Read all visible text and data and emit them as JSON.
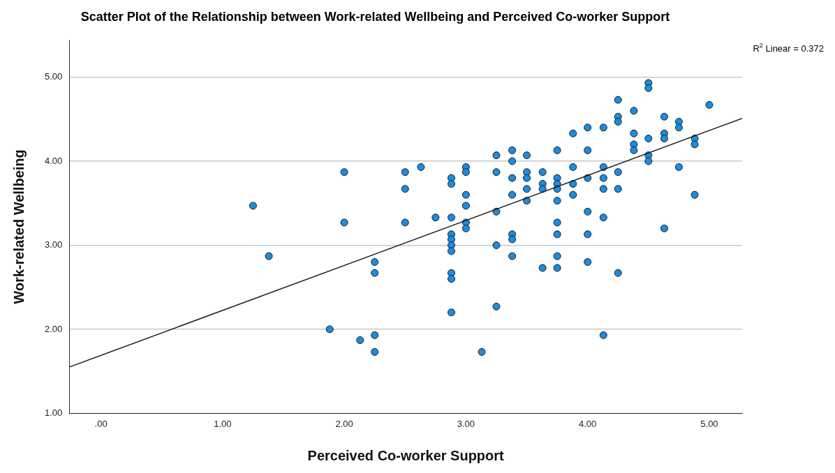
{
  "chart_data": {
    "type": "scatter",
    "title": "Scatter Plot of the Relationship between Work-related Wellbeing and Perceived Co-worker Support",
    "xlabel": "Perceived Co-worker Support",
    "ylabel": "Work-related Wellbeing",
    "annotations": [
      "R$^{2}$ Linear = 0.372"
    ],
    "xlim": [
      -0.26,
      5.27
    ],
    "ylim": [
      1,
      5.44
    ],
    "xticks": [
      {
        "value": 0,
        "label": ".00"
      },
      {
        "value": 1,
        "label": "1.00"
      },
      {
        "value": 2,
        "label": "2.00"
      },
      {
        "value": 3,
        "label": "3.00"
      },
      {
        "value": 4,
        "label": "4.00"
      },
      {
        "value": 5,
        "label": "5.00"
      }
    ],
    "yticks": [
      {
        "value": 1,
        "label": "1.00"
      },
      {
        "value": 2,
        "label": "2.00"
      },
      {
        "value": 3,
        "label": "3.00"
      },
      {
        "value": 4,
        "label": "4.00"
      },
      {
        "value": 5,
        "label": "5.00"
      }
    ],
    "grid": "y",
    "legend": false,
    "marker": "circle",
    "series": [
      {
        "type": "scatter",
        "color": "#1c8ce0",
        "x": [
          1.25,
          1.38,
          1.88,
          2,
          2,
          2.13,
          2.25,
          2.25,
          2.25,
          2.25,
          2.5,
          2.5,
          2.5,
          2.63,
          2.75,
          2.88,
          2.88,
          2.88,
          2.88,
          2.88,
          2.88,
          2.88,
          2.88,
          2.88,
          2.88,
          3,
          3,
          3,
          3,
          3,
          3,
          3.13,
          3.25,
          3.25,
          3.25,
          3.25,
          3.25,
          3.38,
          3.38,
          3.38,
          3.38,
          3.38,
          3.38,
          3.38,
          3.5,
          3.5,
          3.5,
          3.5,
          3.5,
          3.63,
          3.63,
          3.63,
          3.63,
          3.75,
          3.75,
          3.75,
          3.75,
          3.75,
          3.75,
          3.75,
          3.75,
          3.75,
          3.88,
          3.88,
          3.88,
          3.88,
          4,
          4,
          4,
          4,
          4,
          4,
          4.13,
          4.13,
          4.13,
          4.13,
          4.13,
          4.13,
          4.25,
          4.25,
          4.25,
          4.25,
          4.25,
          4.25,
          4.38,
          4.38,
          4.38,
          4.38,
          4.5,
          4.5,
          4.5,
          4.5,
          4.5,
          4.63,
          4.63,
          4.63,
          4.63,
          4.75,
          4.75,
          4.75,
          4.88,
          4.88,
          4.88,
          5
        ],
        "values": [
          3.47,
          2.87,
          2.0,
          3.87,
          3.27,
          1.87,
          2.8,
          2.67,
          1.93,
          1.73,
          3.87,
          3.67,
          3.27,
          3.93,
          3.33,
          3.8,
          3.73,
          3.33,
          3.13,
          3.07,
          3.0,
          2.93,
          2.67,
          2.6,
          2.2,
          3.93,
          3.87,
          3.6,
          3.47,
          3.27,
          3.2,
          1.73,
          4.07,
          3.87,
          3.4,
          3.0,
          2.27,
          4.13,
          4.0,
          3.8,
          3.6,
          3.13,
          3.07,
          2.87,
          4.07,
          3.87,
          3.8,
          3.67,
          3.53,
          3.87,
          3.73,
          3.67,
          2.73,
          4.13,
          3.8,
          3.73,
          3.67,
          3.53,
          3.27,
          3.13,
          2.87,
          2.73,
          4.33,
          3.93,
          3.73,
          3.6,
          4.4,
          4.13,
          3.8,
          3.4,
          3.13,
          2.8,
          4.4,
          3.93,
          3.8,
          3.67,
          3.33,
          1.93,
          4.73,
          4.53,
          4.47,
          3.87,
          3.67,
          2.67,
          4.6,
          4.33,
          4.2,
          4.13,
          4.93,
          4.87,
          4.27,
          4.07,
          4.0,
          4.53,
          4.33,
          4.27,
          3.2,
          4.47,
          4.4,
          3.93,
          4.27,
          4.2,
          3.6,
          4.67
        ]
      },
      {
        "type": "line",
        "color": "#1a1a1a",
        "marker": "none",
        "x": [
          -0.26,
          5.27
        ],
        "values": [
          1.55,
          4.51
        ]
      }
    ]
  }
}
